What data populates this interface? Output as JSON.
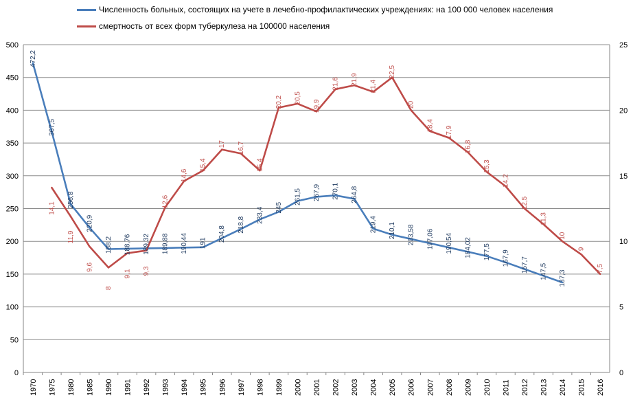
{
  "chart_data": {
    "type": "line",
    "title": "",
    "xlabel": "",
    "ylabel": "",
    "categories": [
      "1970",
      "1975",
      "1980",
      "1985",
      "1990",
      "1991",
      "1992",
      "1993",
      "1994",
      "1995",
      "1996",
      "1997",
      "1998",
      "1999",
      "2000",
      "2001",
      "2002",
      "2003",
      "2004",
      "2005",
      "2006",
      "2007",
      "2008",
      "2009",
      "2010",
      "2011",
      "2012",
      "2013",
      "2014",
      "2015",
      "2016"
    ],
    "ylim": [
      0,
      500
    ],
    "y_ticks": [
      0,
      50,
      100,
      150,
      200,
      250,
      300,
      350,
      400,
      450,
      500
    ],
    "y2lim": [
      0,
      25
    ],
    "y2_ticks": [
      0,
      5,
      10,
      15,
      20,
      25
    ],
    "grid": true,
    "legend_position": "top",
    "series": [
      {
        "name": "Численность больных, состоящих на учете в лечебно-профилактических учреждениях:  на 100 000 человек населения",
        "axis": "left",
        "color": "#4a7ebb",
        "values": [
          472.2,
          367.5,
          256.8,
          220.9,
          188.2,
          188.76,
          189.32,
          189.88,
          190.44,
          191,
          204.8,
          218.8,
          233.4,
          245,
          261.5,
          267.9,
          270.1,
          264.8,
          219.4,
          210.1,
          203.58,
          197.06,
          190.54,
          184.02,
          177.5,
          167.9,
          157.7,
          147.5,
          137.3,
          null,
          null
        ],
        "labels": [
          "472,2",
          "367,5",
          "256,8",
          "220,9",
          "188,2",
          "188,76",
          "189,32",
          "189,88",
          "190,44",
          "191",
          "204,8",
          "218,8",
          "233,4",
          "245",
          "261,5",
          "267,9",
          "270,1",
          "264,8",
          "219,4",
          "210,1",
          "203,58",
          "197,06",
          "190,54",
          "184,02",
          "177,5",
          "167,9",
          "157,7",
          "147,5",
          "137,3",
          "",
          ""
        ]
      },
      {
        "name": "смертность от всех форм туберкулеза на 100000 населения",
        "axis": "right",
        "color": "#be4b48",
        "values": [
          null,
          14.1,
          11.9,
          9.6,
          8,
          9.1,
          9.3,
          12.6,
          14.6,
          15.4,
          17,
          16.7,
          15.4,
          20.2,
          20.5,
          19.9,
          21.6,
          21.9,
          21.4,
          22.5,
          20,
          18.4,
          17.9,
          16.8,
          15.3,
          14.2,
          12.5,
          11.3,
          10,
          9,
          7.5
        ],
        "labels": [
          "",
          "14,1",
          "11,9",
          "9,6",
          "8",
          "9,1",
          "9,3",
          "12,6",
          "14,6",
          "15,4",
          "17",
          "16,7",
          "15,4",
          "20,2",
          "20,5",
          "19,9",
          "21,6",
          "21,9",
          "21,4",
          "22,5",
          "20",
          "18,4",
          "17,9",
          "16,8",
          "15,3",
          "14,2",
          "12,5",
          "11,3",
          "10",
          "9",
          "7,5"
        ]
      }
    ]
  }
}
